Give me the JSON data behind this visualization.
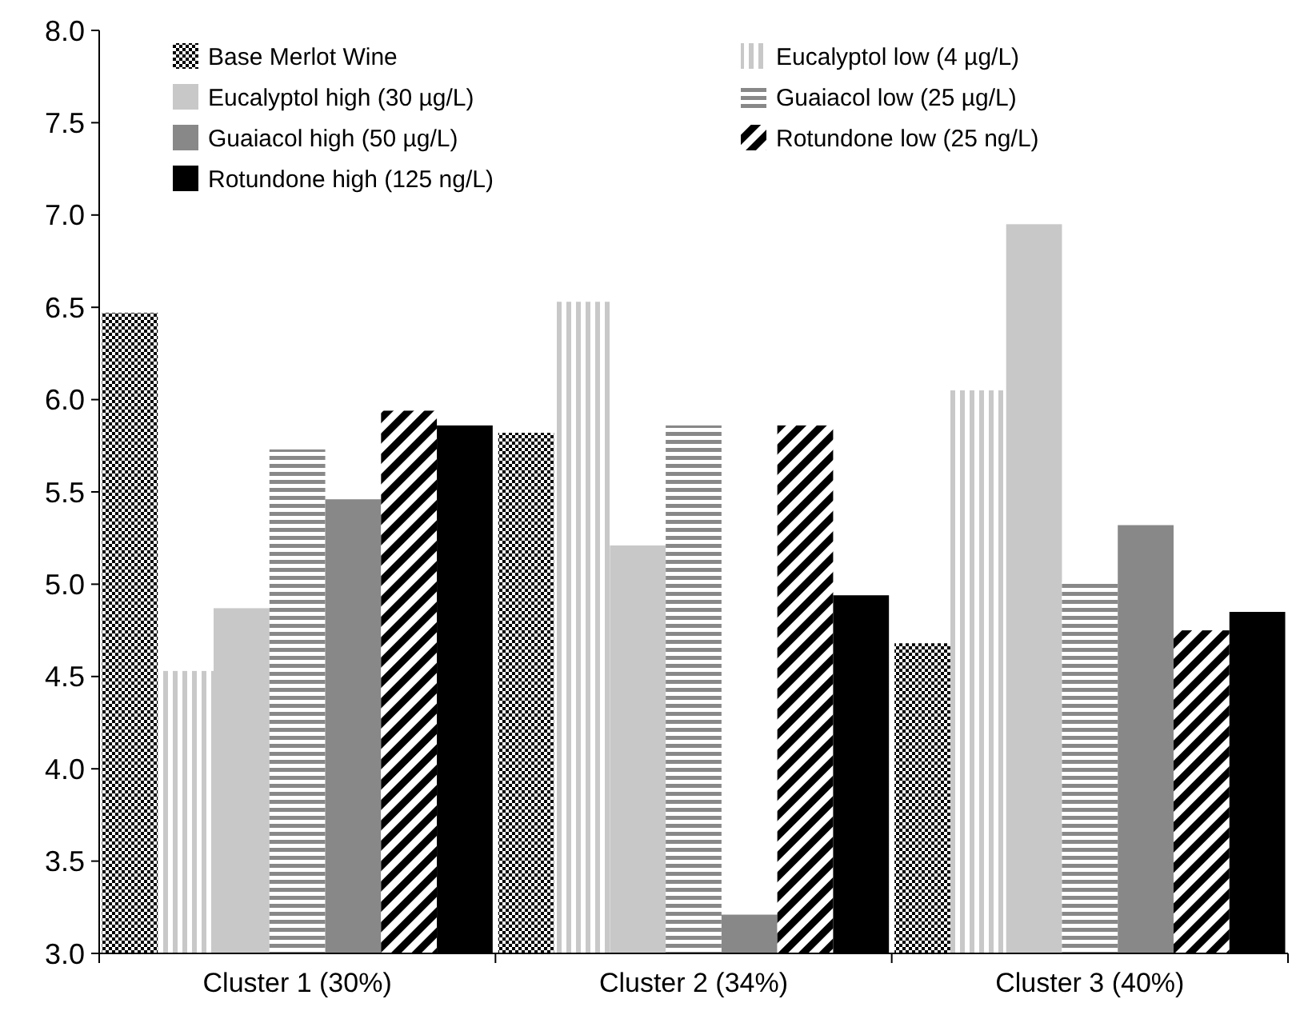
{
  "chart_data": {
    "type": "bar",
    "categories": [
      "Cluster 1 (30%)",
      "Cluster 2 (34%)",
      "Cluster 3 (40%)"
    ],
    "series": [
      {
        "name": "Base Merlot Wine",
        "color": "#000000",
        "values": [
          6.47,
          5.82,
          4.68
        ]
      },
      {
        "name": "Eucalyptol low (4 µg/L)",
        "color": "#c8c8c8",
        "values": [
          4.53,
          6.53,
          6.05
        ]
      },
      {
        "name": "Eucalyptol high (30 µg/L)",
        "color": "#c8c8c8",
        "values": [
          4.87,
          5.21,
          6.95
        ]
      },
      {
        "name": "Guaiacol low (25 µg/L)",
        "color": "#888888",
        "values": [
          5.73,
          5.86,
          5.01
        ]
      },
      {
        "name": "Guaiacol high (50 µg/L)",
        "color": "#888888",
        "values": [
          5.46,
          3.21,
          5.32
        ]
      },
      {
        "name": "Rotundone low (25 ng/L)",
        "color": "#000000",
        "values": [
          5.94,
          5.86,
          4.75
        ]
      },
      {
        "name": "Rotundone high (125 ng/L)",
        "color": "#000000",
        "values": [
          5.86,
          4.94,
          4.85
        ]
      }
    ],
    "ylim": [
      3.0,
      8.0
    ],
    "yticks": [
      {
        "value": 3,
        "label": "3.0"
      },
      {
        "value": 3.5,
        "label": "3.5"
      },
      {
        "value": 4,
        "label": "4.0"
      },
      {
        "value": 4.5,
        "label": "4.5"
      },
      {
        "value": 5,
        "label": "5.0"
      },
      {
        "value": 5.5,
        "label": "5.5"
      },
      {
        "value": 6,
        "label": "6.0"
      },
      {
        "value": 6.5,
        "label": "6.5"
      },
      {
        "value": 7,
        "label": "7.0"
      },
      {
        "value": 7.5,
        "label": "7.5"
      },
      {
        "value": 8,
        "label": "8.0"
      }
    ],
    "legend": "top",
    "grid": false
  }
}
